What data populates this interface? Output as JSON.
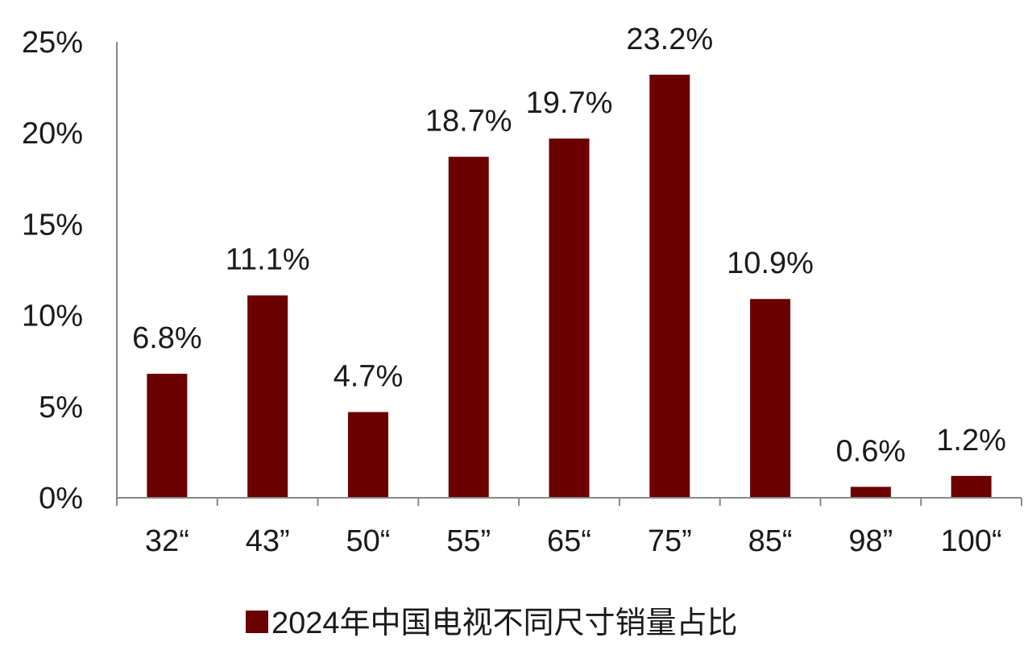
{
  "chart_data": {
    "type": "bar",
    "categories": [
      "32“",
      "43”",
      "50“",
      "55”",
      "65“",
      "75”",
      "85“",
      "98”",
      "100“"
    ],
    "values": [
      6.8,
      11.1,
      4.7,
      18.7,
      19.7,
      23.2,
      10.9,
      0.6,
      1.2
    ],
    "data_labels": [
      "6.8%",
      "11.1%",
      "4.7%",
      "18.7%",
      "19.7%",
      "23.2%",
      "10.9%",
      "0.6%",
      "1.2%"
    ],
    "y_ticks": [
      0,
      5,
      10,
      15,
      20,
      25
    ],
    "y_tick_labels": [
      "0%",
      "5%",
      "10%",
      "15%",
      "20%",
      "25%"
    ],
    "ylim": [
      0,
      25
    ],
    "series": [
      {
        "name": "2024年中国电视不同尺寸销量占比",
        "color": "#6b0000"
      }
    ],
    "legend_position": "bottom",
    "grid": false
  }
}
